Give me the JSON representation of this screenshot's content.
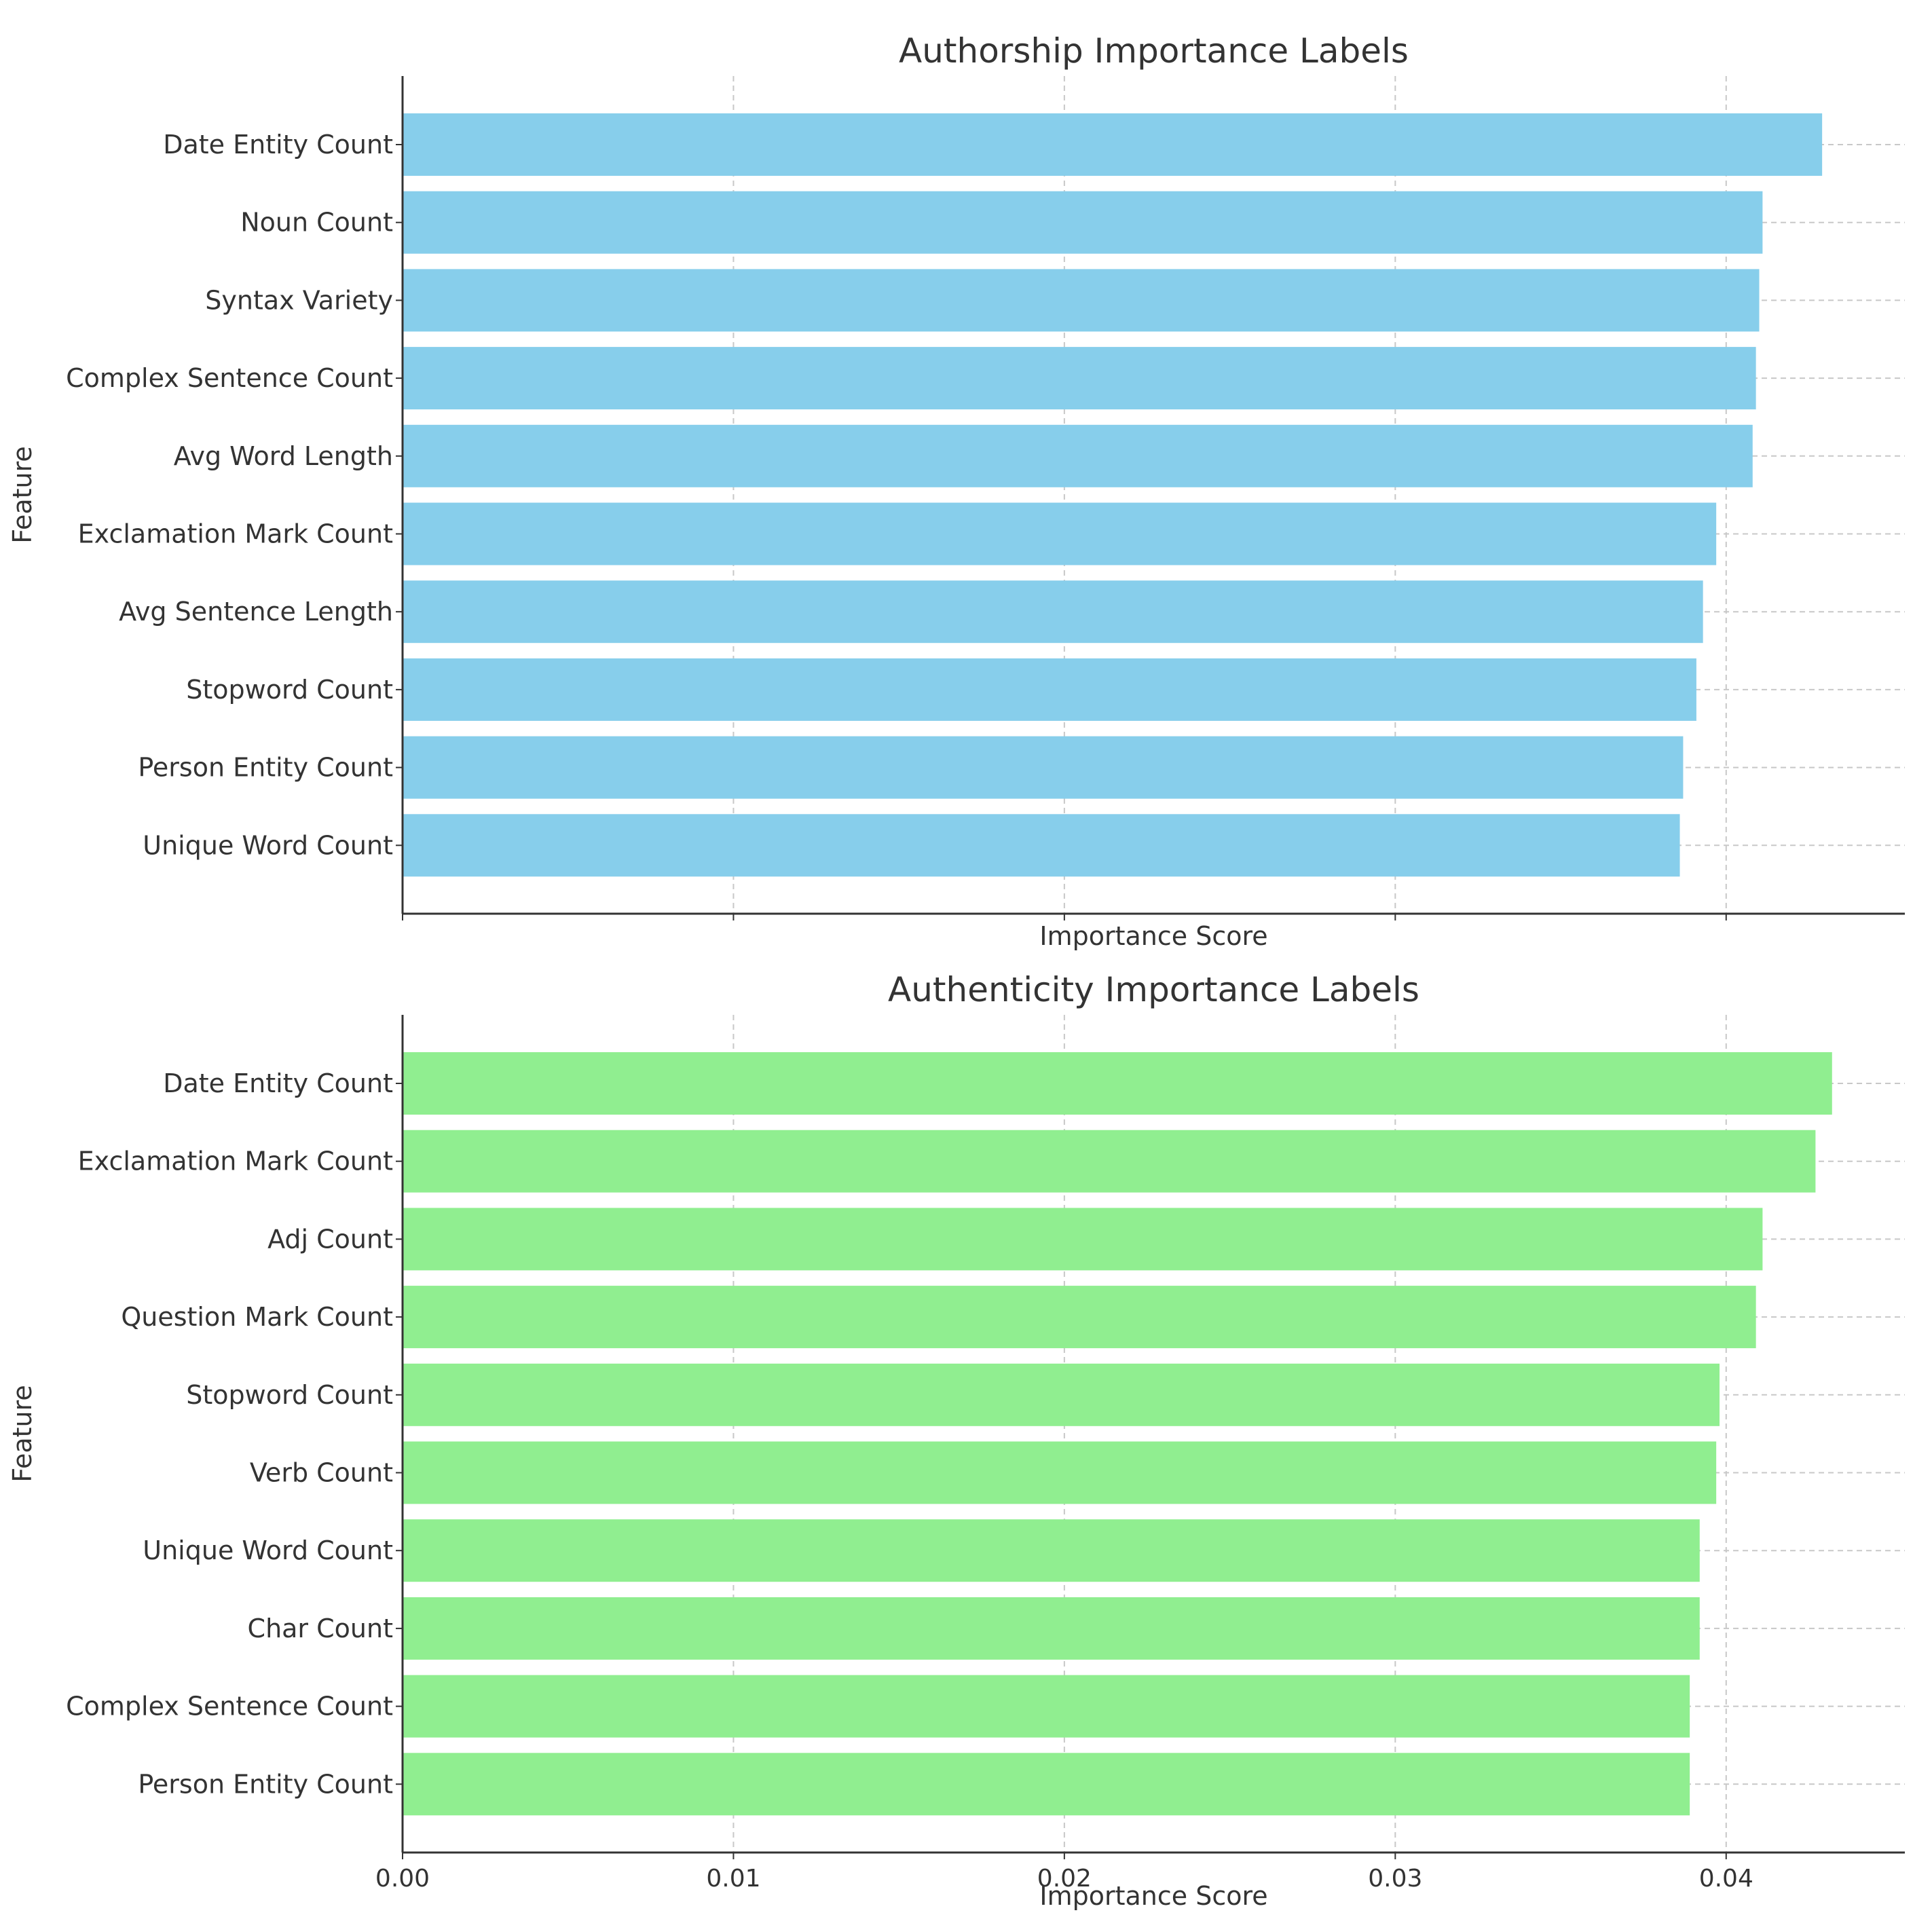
{
  "chart_data": [
    {
      "type": "bar",
      "orientation": "horizontal",
      "title": "Authorship Importance Labels",
      "xlabel": "Importance Score",
      "ylabel": "Feature",
      "xlim": [
        0,
        0.0454
      ],
      "xticks": [
        "0.00",
        "0.01",
        "0.02",
        "0.03",
        "0.04"
      ],
      "xtick_values": [
        0,
        0.01,
        0.02,
        0.03,
        0.04
      ],
      "show_xtick_labels": false,
      "grid": true,
      "bar_color": "#87CEEB",
      "categories": [
        "Date Entity Count",
        "Noun Count",
        "Syntax Variety",
        "Complex Sentence Count",
        "Avg Word Length",
        "Exclamation Mark Count",
        "Avg Sentence Length",
        "Stopword Count",
        "Person Entity Count",
        "Unique Word Count"
      ],
      "values": [
        0.0429,
        0.0411,
        0.041,
        0.0409,
        0.0408,
        0.0397,
        0.0393,
        0.0391,
        0.0387,
        0.0386
      ]
    },
    {
      "type": "bar",
      "orientation": "horizontal",
      "title": "Authenticity Importance Labels",
      "xlabel": "Importance Score",
      "ylabel": "Feature",
      "xlim": [
        0,
        0.0454
      ],
      "xticks": [
        "0.00",
        "0.01",
        "0.02",
        "0.03",
        "0.04"
      ],
      "xtick_values": [
        0,
        0.01,
        0.02,
        0.03,
        0.04
      ],
      "show_xtick_labels": true,
      "grid": true,
      "bar_color": "#90EE90",
      "categories": [
        "Date Entity Count",
        "Exclamation Mark Count",
        "Adj Count",
        "Question Mark Count",
        "Stopword Count",
        "Verb Count",
        "Unique Word Count",
        "Char Count",
        "Complex Sentence Count",
        "Person Entity Count"
      ],
      "values": [
        0.0432,
        0.0427,
        0.0411,
        0.0409,
        0.0398,
        0.0397,
        0.0392,
        0.0392,
        0.0389,
        0.0389
      ]
    }
  ]
}
